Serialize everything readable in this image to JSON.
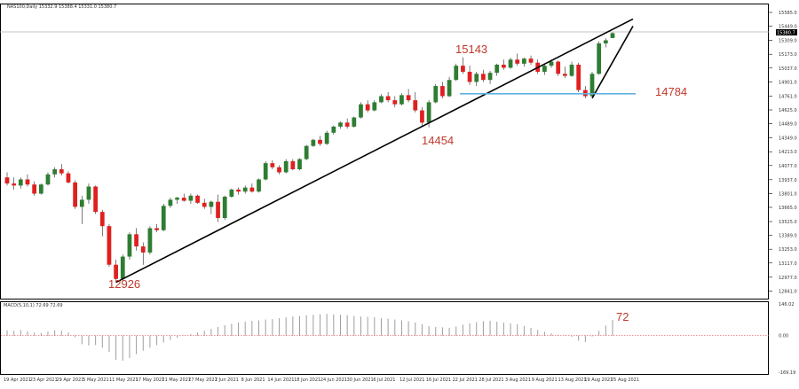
{
  "header": {
    "symbol_line": "NAS100,Daily  15332.9 15388.4 15331.0 15380.7",
    "macd_line": "MACD(5,10,1) 72.69 72.69"
  },
  "colors": {
    "bull": "#2e7d32",
    "bear": "#e02020",
    "trendline": "#000000",
    "support": "#5fb3e3",
    "annotation": "#c0392b",
    "macd_bar": "#9e9e9e",
    "zero_line": "#e05050"
  },
  "annotations": {
    "low_label": "12926",
    "swing_low_label": "14454",
    "high_label": "15143",
    "support_label": "14784",
    "macd_label": "72"
  },
  "chart_data": {
    "type": "candlestick",
    "title": "NAS100,Daily",
    "ohlc_last": {
      "open": 15332.9,
      "high": 15388.4,
      "low": 15331.0,
      "close": 15380.7
    },
    "price_axis_ticks": [
      "15585.0",
      "15449.0",
      "15309.0",
      "15173.0",
      "15037.0",
      "14901.0",
      "14761.0",
      "14625.0",
      "14489.0",
      "14349.0",
      "14213.0",
      "14077.0",
      "13937.0",
      "13801.0",
      "13665.0",
      "13525.0",
      "13389.0",
      "13253.0",
      "13117.0",
      "12977.0",
      "12841.0",
      "12705.0"
    ],
    "price_axis_range": [
      12705,
      15585
    ],
    "current_price_label": "15380.7",
    "date_ticks": [
      "19 Apr 2021",
      "23 Apr 2021",
      "29 Apr 2021",
      "5 May 2021",
      "11 May 2021",
      "17 May 2021",
      "21 May 2021",
      "27 May 2021",
      "2 Jun 2021",
      "8 Jun 2021",
      "14 Jun 2021",
      "18 Jun 2021",
      "24 Jun 2021",
      "30 Jun 2021",
      "6 Jul 2021",
      "12 Jul 2021",
      "16 Jul 2021",
      "22 Jul 2021",
      "28 Jul 2021",
      "3 Aug 2021",
      "9 Aug 2021",
      "13 Aug 2021",
      "19 Aug 2021",
      "25 Aug 2021"
    ],
    "candles": [
      [
        13960,
        14010,
        13880,
        13900
      ],
      [
        13900,
        13960,
        13840,
        13880
      ],
      [
        13880,
        13960,
        13850,
        13940
      ],
      [
        13940,
        13990,
        13870,
        13890
      ],
      [
        13890,
        13920,
        13780,
        13800
      ],
      [
        13800,
        13900,
        13790,
        13890
      ],
      [
        13890,
        14010,
        13880,
        13990
      ],
      [
        13990,
        14060,
        13960,
        14040
      ],
      [
        14040,
        14090,
        13980,
        14000
      ],
      [
        14000,
        14020,
        13900,
        13910
      ],
      [
        13910,
        13930,
        13650,
        13670
      ],
      [
        13670,
        13780,
        13500,
        13740
      ],
      [
        13740,
        13900,
        13700,
        13870
      ],
      [
        13870,
        13880,
        13600,
        13620
      ],
      [
        13620,
        13640,
        13380,
        13480
      ],
      [
        13480,
        13500,
        13080,
        13100
      ],
      [
        13100,
        13150,
        12926,
        12960
      ],
      [
        12960,
        13200,
        12940,
        13180
      ],
      [
        13180,
        13420,
        13150,
        13400
      ],
      [
        13400,
        13460,
        13240,
        13280
      ],
      [
        13280,
        13320,
        13100,
        13220
      ],
      [
        13220,
        13480,
        13200,
        13460
      ],
      [
        13460,
        13500,
        13420,
        13440
      ],
      [
        13440,
        13700,
        13430,
        13680
      ],
      [
        13680,
        13760,
        13660,
        13740
      ],
      [
        13740,
        13770,
        13700,
        13760
      ],
      [
        13760,
        13800,
        13720,
        13730
      ],
      [
        13730,
        13800,
        13700,
        13780
      ],
      [
        13780,
        13790,
        13700,
        13710
      ],
      [
        13710,
        13750,
        13650,
        13670
      ],
      [
        13670,
        13730,
        13600,
        13720
      ],
      [
        13720,
        13790,
        13520,
        13560
      ],
      [
        13560,
        13780,
        13540,
        13770
      ],
      [
        13770,
        13850,
        13760,
        13840
      ],
      [
        13840,
        13860,
        13790,
        13820
      ],
      [
        13820,
        13880,
        13800,
        13860
      ],
      [
        13860,
        13900,
        13810,
        13820
      ],
      [
        13820,
        13950,
        13810,
        13940
      ],
      [
        13940,
        14120,
        13930,
        14100
      ],
      [
        14100,
        14130,
        14040,
        14060
      ],
      [
        14060,
        14080,
        13990,
        14010
      ],
      [
        14010,
        14140,
        14000,
        14120
      ],
      [
        14120,
        14140,
        14030,
        14040
      ],
      [
        14040,
        14150,
        14030,
        14140
      ],
      [
        14140,
        14280,
        14130,
        14270
      ],
      [
        14270,
        14340,
        14260,
        14330
      ],
      [
        14330,
        14370,
        14270,
        14290
      ],
      [
        14290,
        14420,
        14280,
        14400
      ],
      [
        14400,
        14470,
        14380,
        14460
      ],
      [
        14460,
        14510,
        14440,
        14500
      ],
      [
        14500,
        14540,
        14440,
        14460
      ],
      [
        14460,
        14560,
        14450,
        14550
      ],
      [
        14550,
        14700,
        14540,
        14680
      ],
      [
        14680,
        14720,
        14600,
        14620
      ],
      [
        14620,
        14720,
        14610,
        14700
      ],
      [
        14700,
        14780,
        14690,
        14760
      ],
      [
        14760,
        14800,
        14700,
        14720
      ],
      [
        14720,
        14760,
        14650,
        14680
      ],
      [
        14680,
        14790,
        14670,
        14770
      ],
      [
        14770,
        14830,
        14700,
        14720
      ],
      [
        14720,
        14800,
        14600,
        14620
      ],
      [
        14620,
        14650,
        14470,
        14500
      ],
      [
        14500,
        14720,
        14454,
        14700
      ],
      [
        14700,
        14880,
        14690,
        14860
      ],
      [
        14860,
        14900,
        14740,
        14760
      ],
      [
        14760,
        14950,
        14750,
        14920
      ],
      [
        14920,
        15080,
        14910,
        15060
      ],
      [
        15060,
        15143,
        14980,
        15000
      ],
      [
        15000,
        15060,
        14870,
        14900
      ],
      [
        14900,
        15000,
        14860,
        14980
      ],
      [
        14980,
        15020,
        14900,
        14920
      ],
      [
        14920,
        15010,
        14880,
        14990
      ],
      [
        14990,
        15080,
        14960,
        15070
      ],
      [
        15070,
        15120,
        15020,
        15040
      ],
      [
        15040,
        15140,
        15030,
        15120
      ],
      [
        15120,
        15180,
        15060,
        15080
      ],
      [
        15080,
        15140,
        15050,
        15130
      ],
      [
        15130,
        15160,
        15070,
        15090
      ],
      [
        15090,
        15120,
        14980,
        15000
      ],
      [
        15000,
        15080,
        14970,
        15060
      ],
      [
        15060,
        15120,
        15040,
        15100
      ],
      [
        15100,
        15110,
        14960,
        14980
      ],
      [
        14980,
        15050,
        14940,
        14960
      ],
      [
        14960,
        15100,
        14950,
        15070
      ],
      [
        15070,
        15090,
        14800,
        14820
      ],
      [
        14820,
        14860,
        14740,
        14760
      ],
      [
        14760,
        15000,
        14750,
        14980
      ],
      [
        14980,
        15300,
        14970,
        15280
      ],
      [
        15280,
        15330,
        15240,
        15310
      ],
      [
        15332.9,
        15388.4,
        15331.0,
        15380.7
      ]
    ],
    "macd_histogram": [
      24,
      22,
      26,
      20,
      14,
      12,
      18,
      24,
      22,
      14,
      -8,
      -40,
      -46,
      -44,
      -56,
      -76,
      -112,
      -116,
      -104,
      -86,
      -70,
      -56,
      -44,
      -32,
      -20,
      -10,
      -2,
      6,
      14,
      22,
      30,
      40,
      48,
      54,
      60,
      64,
      68,
      70,
      74,
      76,
      80,
      84,
      88,
      90,
      94,
      96,
      98,
      100,
      98,
      96,
      94,
      90,
      88,
      86,
      84,
      80,
      78,
      74,
      70,
      66,
      60,
      52,
      44,
      40,
      38,
      36,
      42,
      50,
      56,
      62,
      66,
      68,
      64,
      60,
      56,
      52,
      44,
      36,
      26,
      18,
      10,
      4,
      -2,
      -6,
      -24,
      -30,
      -4,
      22,
      46,
      72.69
    ],
    "macd_axis_ticks": [
      "146.02",
      "0.00",
      "-169.19"
    ],
    "macd_range": [
      -169.19,
      146.02
    ],
    "trendlines": [
      {
        "name": "rising support",
        "from": {
          "index": 16,
          "price": 12926
        },
        "to": {
          "index": 92,
          "price": 15520
        }
      },
      {
        "name": "recent leg",
        "from": {
          "index": 86,
          "price": 14740
        },
        "to": {
          "index": 92,
          "price": 15450
        }
      }
    ],
    "support_level": 14784
  }
}
